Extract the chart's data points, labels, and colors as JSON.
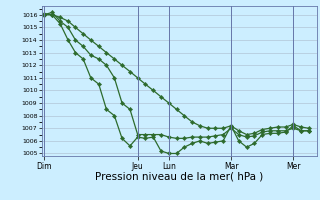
{
  "bg_color": "#cceeff",
  "grid_color": "#aabbcc",
  "line_color": "#2d6b2d",
  "marker": "D",
  "markersize": 2.2,
  "linewidth": 0.9,
  "ylim": [
    1004.8,
    1016.7
  ],
  "yticks": [
    1005,
    1006,
    1007,
    1008,
    1009,
    1010,
    1011,
    1012,
    1013,
    1014,
    1015,
    1016
  ],
  "xlabel": "Pression niveau de la mer( hPa )",
  "xlabel_fontsize": 7.5,
  "day_labels": [
    "Dim",
    "Jeu",
    "Lun",
    "Mar",
    "Mer"
  ],
  "day_positions": [
    0.0,
    0.353,
    0.471,
    0.706,
    0.941
  ],
  "line_steep_x": [
    0.0,
    0.03,
    0.06,
    0.09,
    0.118,
    0.147,
    0.176,
    0.206,
    0.235,
    0.265,
    0.294,
    0.324,
    0.353,
    0.382,
    0.412,
    0.441,
    0.471,
    0.5,
    0.529,
    0.559,
    0.588,
    0.618,
    0.647,
    0.676,
    0.706,
    0.735,
    0.765,
    0.794,
    0.824,
    0.853,
    0.882,
    0.912,
    0.941,
    0.971,
    1.0
  ],
  "line_steep_y": [
    1016.0,
    1016.0,
    1015.3,
    1014.0,
    1013.0,
    1012.5,
    1011.0,
    1010.5,
    1008.5,
    1008.0,
    1006.2,
    1005.6,
    1006.3,
    1006.2,
    1006.3,
    1005.2,
    1005.0,
    1005.0,
    1005.5,
    1005.8,
    1006.0,
    1005.8,
    1005.9,
    1006.0,
    1007.2,
    1006.0,
    1005.5,
    1005.8,
    1006.5,
    1006.6,
    1006.6,
    1006.7,
    1007.2,
    1006.8,
    1006.8
  ],
  "line_slow_x": [
    0.0,
    0.03,
    0.06,
    0.09,
    0.118,
    0.147,
    0.176,
    0.206,
    0.235,
    0.265,
    0.294,
    0.324,
    0.353,
    0.382,
    0.412,
    0.441,
    0.471,
    0.5,
    0.529,
    0.559,
    0.588,
    0.618,
    0.647,
    0.676,
    0.706,
    0.735,
    0.765,
    0.794,
    0.824,
    0.853,
    0.882,
    0.912,
    0.941,
    0.971,
    1.0
  ],
  "line_slow_y": [
    1016.1,
    1016.0,
    1015.8,
    1015.5,
    1015.0,
    1014.5,
    1014.0,
    1013.5,
    1013.0,
    1012.5,
    1012.0,
    1011.5,
    1011.0,
    1010.5,
    1010.0,
    1009.5,
    1009.0,
    1008.5,
    1008.0,
    1007.5,
    1007.2,
    1007.0,
    1007.0,
    1007.0,
    1007.2,
    1006.8,
    1006.5,
    1006.6,
    1006.9,
    1007.0,
    1007.1,
    1007.1,
    1007.3,
    1007.1,
    1007.0
  ],
  "line_mid_x": [
    0.0,
    0.03,
    0.06,
    0.09,
    0.118,
    0.147,
    0.176,
    0.206,
    0.235,
    0.265,
    0.294,
    0.324,
    0.353,
    0.382,
    0.412,
    0.441,
    0.471,
    0.5,
    0.529,
    0.559,
    0.588,
    0.618,
    0.647,
    0.676,
    0.706,
    0.735,
    0.765,
    0.794,
    0.824,
    0.853,
    0.882,
    0.912,
    0.941,
    0.971,
    1.0
  ],
  "line_mid_y": [
    1016.0,
    1016.2,
    1015.5,
    1015.0,
    1014.0,
    1013.5,
    1012.8,
    1012.5,
    1012.0,
    1011.0,
    1009.0,
    1008.5,
    1006.5,
    1006.5,
    1006.5,
    1006.5,
    1006.3,
    1006.2,
    1006.2,
    1006.3,
    1006.3,
    1006.3,
    1006.4,
    1006.5,
    1007.0,
    1006.5,
    1006.3,
    1006.4,
    1006.7,
    1006.8,
    1006.8,
    1006.8,
    1007.0,
    1006.8,
    1006.8
  ]
}
